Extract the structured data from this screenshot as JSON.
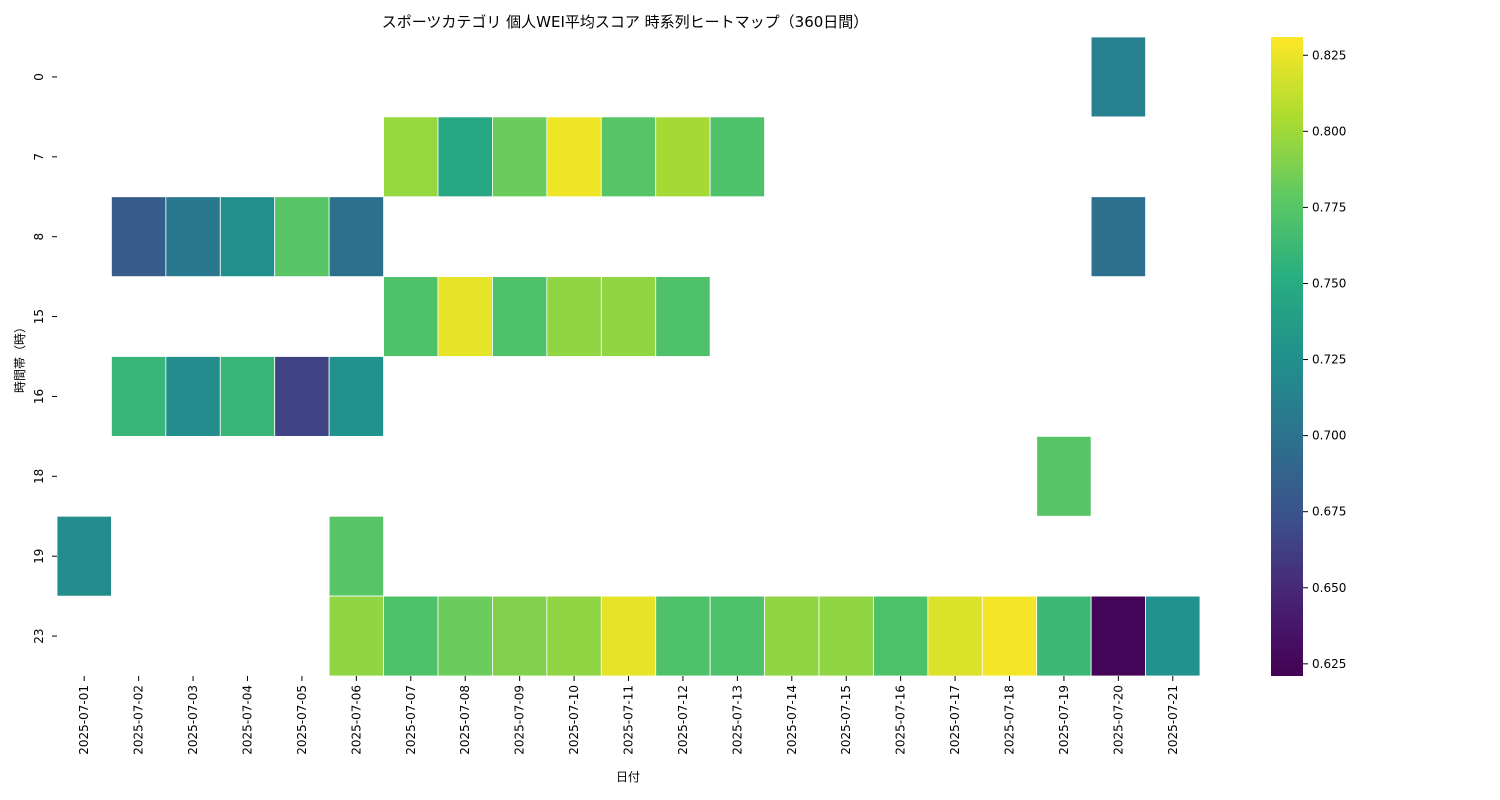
{
  "chart_data": {
    "type": "heatmap",
    "title": "スポーツカテゴリ 個人WEI平均スコア 時系列ヒートマップ（360日間）",
    "xlabel": "日付",
    "ylabel": "時間帯（時）",
    "x": [
      "2025-07-01",
      "2025-07-02",
      "2025-07-03",
      "2025-07-04",
      "2025-07-05",
      "2025-07-06",
      "2025-07-07",
      "2025-07-08",
      "2025-07-09",
      "2025-07-10",
      "2025-07-11",
      "2025-07-12",
      "2025-07-13",
      "2025-07-14",
      "2025-07-15",
      "2025-07-16",
      "2025-07-17",
      "2025-07-18",
      "2025-07-19",
      "2025-07-20",
      "2025-07-21"
    ],
    "y": [
      "0",
      "7",
      "8",
      "15",
      "16",
      "18",
      "19",
      "23"
    ],
    "values": [
      [
        null,
        null,
        null,
        null,
        null,
        null,
        null,
        null,
        null,
        null,
        null,
        null,
        null,
        null,
        null,
        null,
        null,
        null,
        null,
        0.712,
        null
      ],
      [
        null,
        null,
        null,
        null,
        null,
        null,
        0.797,
        0.747,
        0.782,
        0.826,
        0.775,
        0.802,
        0.771,
        null,
        null,
        null,
        null,
        null,
        null,
        null,
        null
      ],
      [
        null,
        0.682,
        0.705,
        0.725,
        0.775,
        0.698,
        null,
        null,
        null,
        null,
        null,
        null,
        null,
        null,
        null,
        null,
        null,
        null,
        null,
        0.698,
        null
      ],
      [
        null,
        null,
        null,
        null,
        null,
        null,
        0.771,
        0.823,
        0.771,
        0.795,
        0.795,
        0.771,
        null,
        null,
        null,
        null,
        null,
        null,
        null,
        null,
        null
      ],
      [
        null,
        0.76,
        0.722,
        0.76,
        0.665,
        0.727,
        null,
        null,
        null,
        null,
        null,
        null,
        null,
        null,
        null,
        null,
        null,
        null,
        null,
        null,
        null
      ],
      [
        null,
        null,
        null,
        null,
        null,
        null,
        null,
        null,
        null,
        null,
        null,
        null,
        null,
        null,
        null,
        null,
        null,
        null,
        0.775,
        null,
        null
      ],
      [
        0.722,
        null,
        null,
        null,
        null,
        0.775,
        null,
        null,
        null,
        null,
        null,
        null,
        null,
        null,
        null,
        null,
        null,
        null,
        null,
        null,
        null
      ],
      [
        null,
        null,
        null,
        null,
        null,
        0.795,
        0.771,
        0.782,
        0.79,
        0.795,
        0.823,
        0.771,
        0.771,
        0.795,
        0.795,
        0.771,
        0.82,
        0.828,
        0.762,
        0.623,
        0.727
      ]
    ],
    "colorbar": {
      "vmin": 0.621,
      "vmax": 0.831,
      "colormap": "viridis",
      "ticks": [
        0.625,
        0.65,
        0.675,
        0.7,
        0.725,
        0.75,
        0.775,
        0.8,
        0.825
      ],
      "tick_labels": [
        "0.625",
        "0.650",
        "0.675",
        "0.700",
        "0.725",
        "0.750",
        "0.775",
        "0.800",
        "0.825"
      ]
    },
    "legend": "right",
    "grid": false
  }
}
